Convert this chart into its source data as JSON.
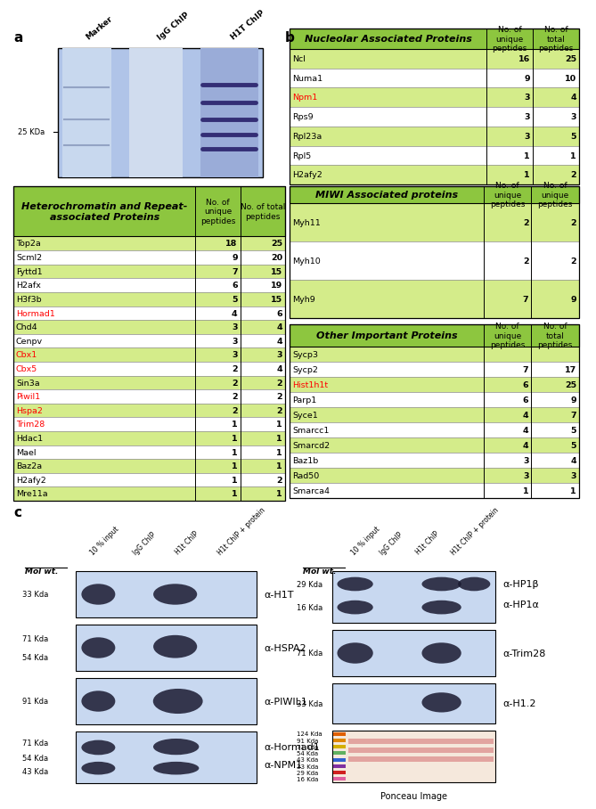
{
  "panel_a_label": "a",
  "panel_b_label": "b",
  "panel_c_label": "c",
  "gel_lane_labels": [
    "Marker",
    "IgG ChIP",
    "H1T ChIP"
  ],
  "gel_25kda_label": "25 KDa",
  "nucleolar_table": {
    "title": "Nucleolar Associated Proteins",
    "col2": "No. of\nunique\npeptides",
    "col3": "No. of\ntotal\npeptides",
    "rows": [
      [
        "Ncl",
        "16",
        "25"
      ],
      [
        "Numa1",
        "9",
        "10"
      ],
      [
        "Npm1",
        "3",
        "4"
      ],
      [
        "Rps9",
        "3",
        "3"
      ],
      [
        "Rpl23a",
        "3",
        "5"
      ],
      [
        "Rpl5",
        "1",
        "1"
      ],
      [
        "H2afy2",
        "1",
        "2"
      ]
    ],
    "red_rows": [
      "Npm1"
    ]
  },
  "hetero_table": {
    "title": "Heterochromatin and Repeat-\nassociated Proteins",
    "col2": "No. of\nunique\npeptides",
    "col3": "No. of total\npeptides",
    "rows": [
      [
        "Top2a",
        "18",
        "25"
      ],
      [
        "Scml2",
        "9",
        "20"
      ],
      [
        "Fyttd1",
        "7",
        "15"
      ],
      [
        "H2afx",
        "6",
        "19"
      ],
      [
        "H3f3b",
        "5",
        "15"
      ],
      [
        "Hormad1",
        "4",
        "6"
      ],
      [
        "Chd4",
        "3",
        "4"
      ],
      [
        "Cenpv",
        "3",
        "4"
      ],
      [
        "Cbx1",
        "3",
        "3"
      ],
      [
        "Cbx5",
        "2",
        "4"
      ],
      [
        "Sin3a",
        "2",
        "2"
      ],
      [
        "Piwil1",
        "2",
        "2"
      ],
      [
        "Hspa2",
        "2",
        "2"
      ],
      [
        "Trim28",
        "1",
        "1"
      ],
      [
        "Hdac1",
        "1",
        "1"
      ],
      [
        "Mael",
        "1",
        "1"
      ],
      [
        "Baz2a",
        "1",
        "1"
      ],
      [
        "H2afy2",
        "1",
        "2"
      ],
      [
        "Mre11a",
        "1",
        "1"
      ]
    ],
    "red_rows": [
      "Hormad1",
      "Cbx1",
      "Cbx5",
      "Piwil1",
      "Hspa2",
      "Trim28"
    ]
  },
  "miwi_table": {
    "title": "MIWI Associated proteins",
    "col2": "No. of\nunique\npeptides",
    "col3": "No. of\nunique\npeptides",
    "rows": [
      [
        "Myh11",
        "2",
        "2"
      ],
      [
        "Myh10",
        "2",
        "2"
      ],
      [
        "Myh9",
        "7",
        "9"
      ]
    ],
    "red_rows": []
  },
  "other_table": {
    "title": "Other Important Proteins",
    "col2": "No. of\nunique\npeptides",
    "col3": "No. of\ntotal\npeptides",
    "rows": [
      [
        "Sycp3",
        "",
        ""
      ],
      [
        "Sycp2",
        "7",
        "17"
      ],
      [
        "Hist1h1t",
        "6",
        "25"
      ],
      [
        "Parp1",
        "6",
        "9"
      ],
      [
        "Syce1",
        "4",
        "7"
      ],
      [
        "Smarcc1",
        "4",
        "5"
      ],
      [
        "Smarcd2",
        "4",
        "5"
      ],
      [
        "Baz1b",
        "3",
        "4"
      ],
      [
        "Rad50",
        "3",
        "3"
      ],
      [
        "Smarca4",
        "1",
        "1"
      ]
    ],
    "red_rows": [
      "Hist1h1t"
    ]
  },
  "wb_col_labels": [
    "10 % input",
    "IgG ChIP",
    "H1t ChIP",
    "H1t ChIP + protein"
  ],
  "wb_mol_wt_label": "Mol wt.",
  "green_hdr": "#8DC63F",
  "green_light": "#D4EC8A",
  "wb_bg": "#C8D8F0",
  "wb_band_dark": "#1A1A30",
  "ponceau_bg": "#F5E8DC"
}
